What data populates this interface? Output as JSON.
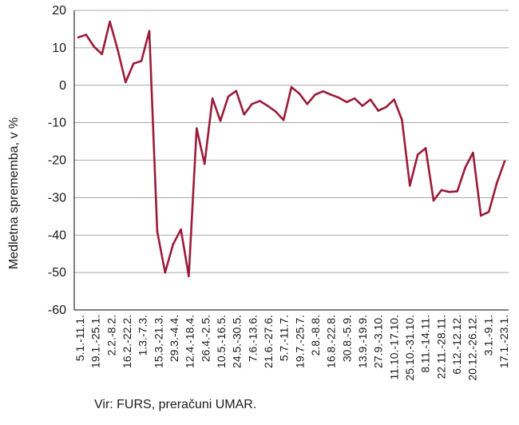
{
  "source_note": "Vir: FURS, preračuni UMAR.",
  "colors": {
    "line": "#9b1b3a",
    "grid": "#8c8c8c",
    "axis": "#000000"
  },
  "chart_data": {
    "type": "line",
    "title": "",
    "xlabel": "",
    "ylabel": "Medletna sprememba, v %",
    "ylim": [
      -60,
      20
    ],
    "yticks": [
      20,
      10,
      0,
      -10,
      -20,
      -30,
      -40,
      -50,
      -60
    ],
    "grid": true,
    "x_tick_labels": [
      "5.1.-11.1.",
      "19.1.-25.1.",
      "2.2.-8.2.",
      "16.2.-22.2.",
      "1.3.-7.3.",
      "15.3.-21.3.",
      "29.3.-4.4.",
      "12.4.-18.4.",
      "26.4.-2.5.",
      "10.5.-16.5.",
      "24.5.-30.5.",
      "7.6.-13.6.",
      "21.6.-27.6.",
      "5.7.-11.7.",
      "19.7.-25.7.",
      "2.8.-8.8.",
      "16.8.-22.8.",
      "30.8.-5.9.",
      "13.9.-19.9.",
      "27.9.-3.10.",
      "11.10.-17.10.",
      "25.10.-31.10.",
      "8.11.-14.11.",
      "22.11.-28.11.",
      "6.12.-12.12.",
      "20.12.-26.12.",
      "3.1.-9.1.",
      "17.1.-23.1."
    ],
    "series": [
      {
        "values": [
          12.8,
          13.5,
          10.3,
          8.3,
          17.0,
          9.5,
          0.8,
          5.8,
          6.5,
          14.5,
          -39.0,
          -50.0,
          -42.5,
          -38.5,
          -51.0,
          -11.5,
          -21.0,
          -3.5,
          -9.5,
          -3.0,
          -1.5,
          -7.8,
          -5.0,
          -4.2,
          -5.5,
          -7.0,
          -9.3,
          -0.5,
          -2.2,
          -5.0,
          -2.5,
          -1.6,
          -2.5,
          -3.3,
          -4.5,
          -3.5,
          -5.5,
          -3.8,
          -6.8,
          -5.8,
          -3.8,
          -9.2,
          -26.8,
          -18.5,
          -16.8,
          -30.8,
          -28.0,
          -28.5,
          -28.3,
          -22.0,
          -18.0,
          -34.8,
          -33.8,
          -26.2,
          -20.3
        ]
      }
    ]
  }
}
